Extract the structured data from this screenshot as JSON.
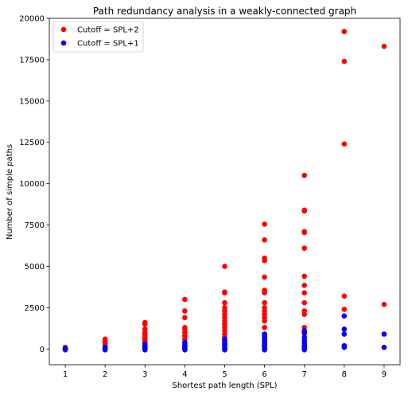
{
  "chart_data": {
    "type": "scatter",
    "title": "Path redundancy analysis in a weakly-connected graph",
    "xlabel": "Shortest path length (SPL)",
    "ylabel": "Number of simple paths",
    "xlim": [
      0.6,
      9.4
    ],
    "ylim": [
      -950,
      20000
    ],
    "xticks": [
      1,
      2,
      3,
      4,
      5,
      6,
      7,
      8,
      9
    ],
    "yticks": [
      0,
      2500,
      5000,
      7500,
      10000,
      12500,
      15000,
      17500,
      20000
    ],
    "grid": false,
    "legend_position": "top-left",
    "series": [
      {
        "name": "Cutoff = SPL+2",
        "color": "#ff0000",
        "points": [
          [
            1,
            0
          ],
          [
            1,
            60
          ],
          [
            1,
            110
          ],
          [
            2,
            0
          ],
          [
            2,
            100
          ],
          [
            2,
            200
          ],
          [
            2,
            300
          ],
          [
            2,
            400
          ],
          [
            2,
            500
          ],
          [
            2,
            600
          ],
          [
            3,
            0
          ],
          [
            3,
            100
          ],
          [
            3,
            200
          ],
          [
            3,
            300
          ],
          [
            3,
            400
          ],
          [
            3,
            500
          ],
          [
            3,
            600
          ],
          [
            3,
            700
          ],
          [
            3,
            800
          ],
          [
            3,
            900
          ],
          [
            3,
            1000
          ],
          [
            3,
            1200
          ],
          [
            3,
            1500
          ],
          [
            3,
            1600
          ],
          [
            4,
            0
          ],
          [
            4,
            200
          ],
          [
            4,
            400
          ],
          [
            4,
            600
          ],
          [
            4,
            800
          ],
          [
            4,
            1000
          ],
          [
            4,
            1200
          ],
          [
            4,
            1300
          ],
          [
            4,
            1900
          ],
          [
            4,
            2300
          ],
          [
            4,
            3000
          ],
          [
            5,
            0
          ],
          [
            5,
            300
          ],
          [
            5,
            500
          ],
          [
            5,
            700
          ],
          [
            5,
            900
          ],
          [
            5,
            1100
          ],
          [
            5,
            1300
          ],
          [
            5,
            1500
          ],
          [
            5,
            1700
          ],
          [
            5,
            1900
          ],
          [
            5,
            2100
          ],
          [
            5,
            2300
          ],
          [
            5,
            2500
          ],
          [
            5,
            2800
          ],
          [
            5,
            3400
          ],
          [
            5,
            3450
          ],
          [
            5,
            5000
          ],
          [
            6,
            0
          ],
          [
            6,
            300
          ],
          [
            6,
            600
          ],
          [
            6,
            900
          ],
          [
            6,
            1300
          ],
          [
            6,
            1700
          ],
          [
            6,
            1900
          ],
          [
            6,
            2100
          ],
          [
            6,
            2300
          ],
          [
            6,
            2500
          ],
          [
            6,
            2800
          ],
          [
            6,
            3400
          ],
          [
            6,
            3550
          ],
          [
            6,
            4350
          ],
          [
            6,
            5350
          ],
          [
            6,
            5500
          ],
          [
            6,
            6600
          ],
          [
            6,
            7550
          ],
          [
            7,
            0
          ],
          [
            7,
            400
          ],
          [
            7,
            900
          ],
          [
            7,
            1300
          ],
          [
            7,
            2100
          ],
          [
            7,
            2300
          ],
          [
            7,
            2800
          ],
          [
            7,
            3400
          ],
          [
            7,
            3850
          ],
          [
            7,
            4400
          ],
          [
            7,
            6100
          ],
          [
            7,
            7050
          ],
          [
            7,
            7100
          ],
          [
            7,
            8350
          ],
          [
            7,
            8400
          ],
          [
            7,
            10500
          ],
          [
            8,
            2400
          ],
          [
            8,
            3200
          ],
          [
            8,
            12400
          ],
          [
            8,
            17400
          ],
          [
            8,
            19200
          ],
          [
            9,
            2700
          ],
          [
            9,
            18300
          ]
        ]
      },
      {
        "name": "Cutoff = SPL+1",
        "color": "#0000ff",
        "points": [
          [
            1,
            -50
          ],
          [
            1,
            0
          ],
          [
            1,
            30
          ],
          [
            2,
            -50
          ],
          [
            2,
            0
          ],
          [
            2,
            50
          ],
          [
            2,
            100
          ],
          [
            3,
            -50
          ],
          [
            3,
            0
          ],
          [
            3,
            50
          ],
          [
            3,
            100
          ],
          [
            3,
            200
          ],
          [
            3,
            300
          ],
          [
            4,
            -50
          ],
          [
            4,
            0
          ],
          [
            4,
            100
          ],
          [
            4,
            200
          ],
          [
            4,
            300
          ],
          [
            4,
            400
          ],
          [
            5,
            -50
          ],
          [
            5,
            0
          ],
          [
            5,
            100
          ],
          [
            5,
            200
          ],
          [
            5,
            300
          ],
          [
            5,
            400
          ],
          [
            5,
            500
          ],
          [
            5,
            600
          ],
          [
            6,
            -50
          ],
          [
            6,
            0
          ],
          [
            6,
            100
          ],
          [
            6,
            200
          ],
          [
            6,
            300
          ],
          [
            6,
            400
          ],
          [
            6,
            500
          ],
          [
            6,
            600
          ],
          [
            6,
            750
          ],
          [
            6,
            900
          ],
          [
            7,
            -50
          ],
          [
            7,
            0
          ],
          [
            7,
            100
          ],
          [
            7,
            200
          ],
          [
            7,
            300
          ],
          [
            7,
            500
          ],
          [
            7,
            700
          ],
          [
            7,
            1000
          ],
          [
            7,
            1100
          ],
          [
            8,
            100
          ],
          [
            8,
            200
          ],
          [
            8,
            900
          ],
          [
            8,
            1200
          ],
          [
            8,
            2000
          ],
          [
            9,
            100
          ],
          [
            9,
            900
          ]
        ]
      }
    ]
  }
}
